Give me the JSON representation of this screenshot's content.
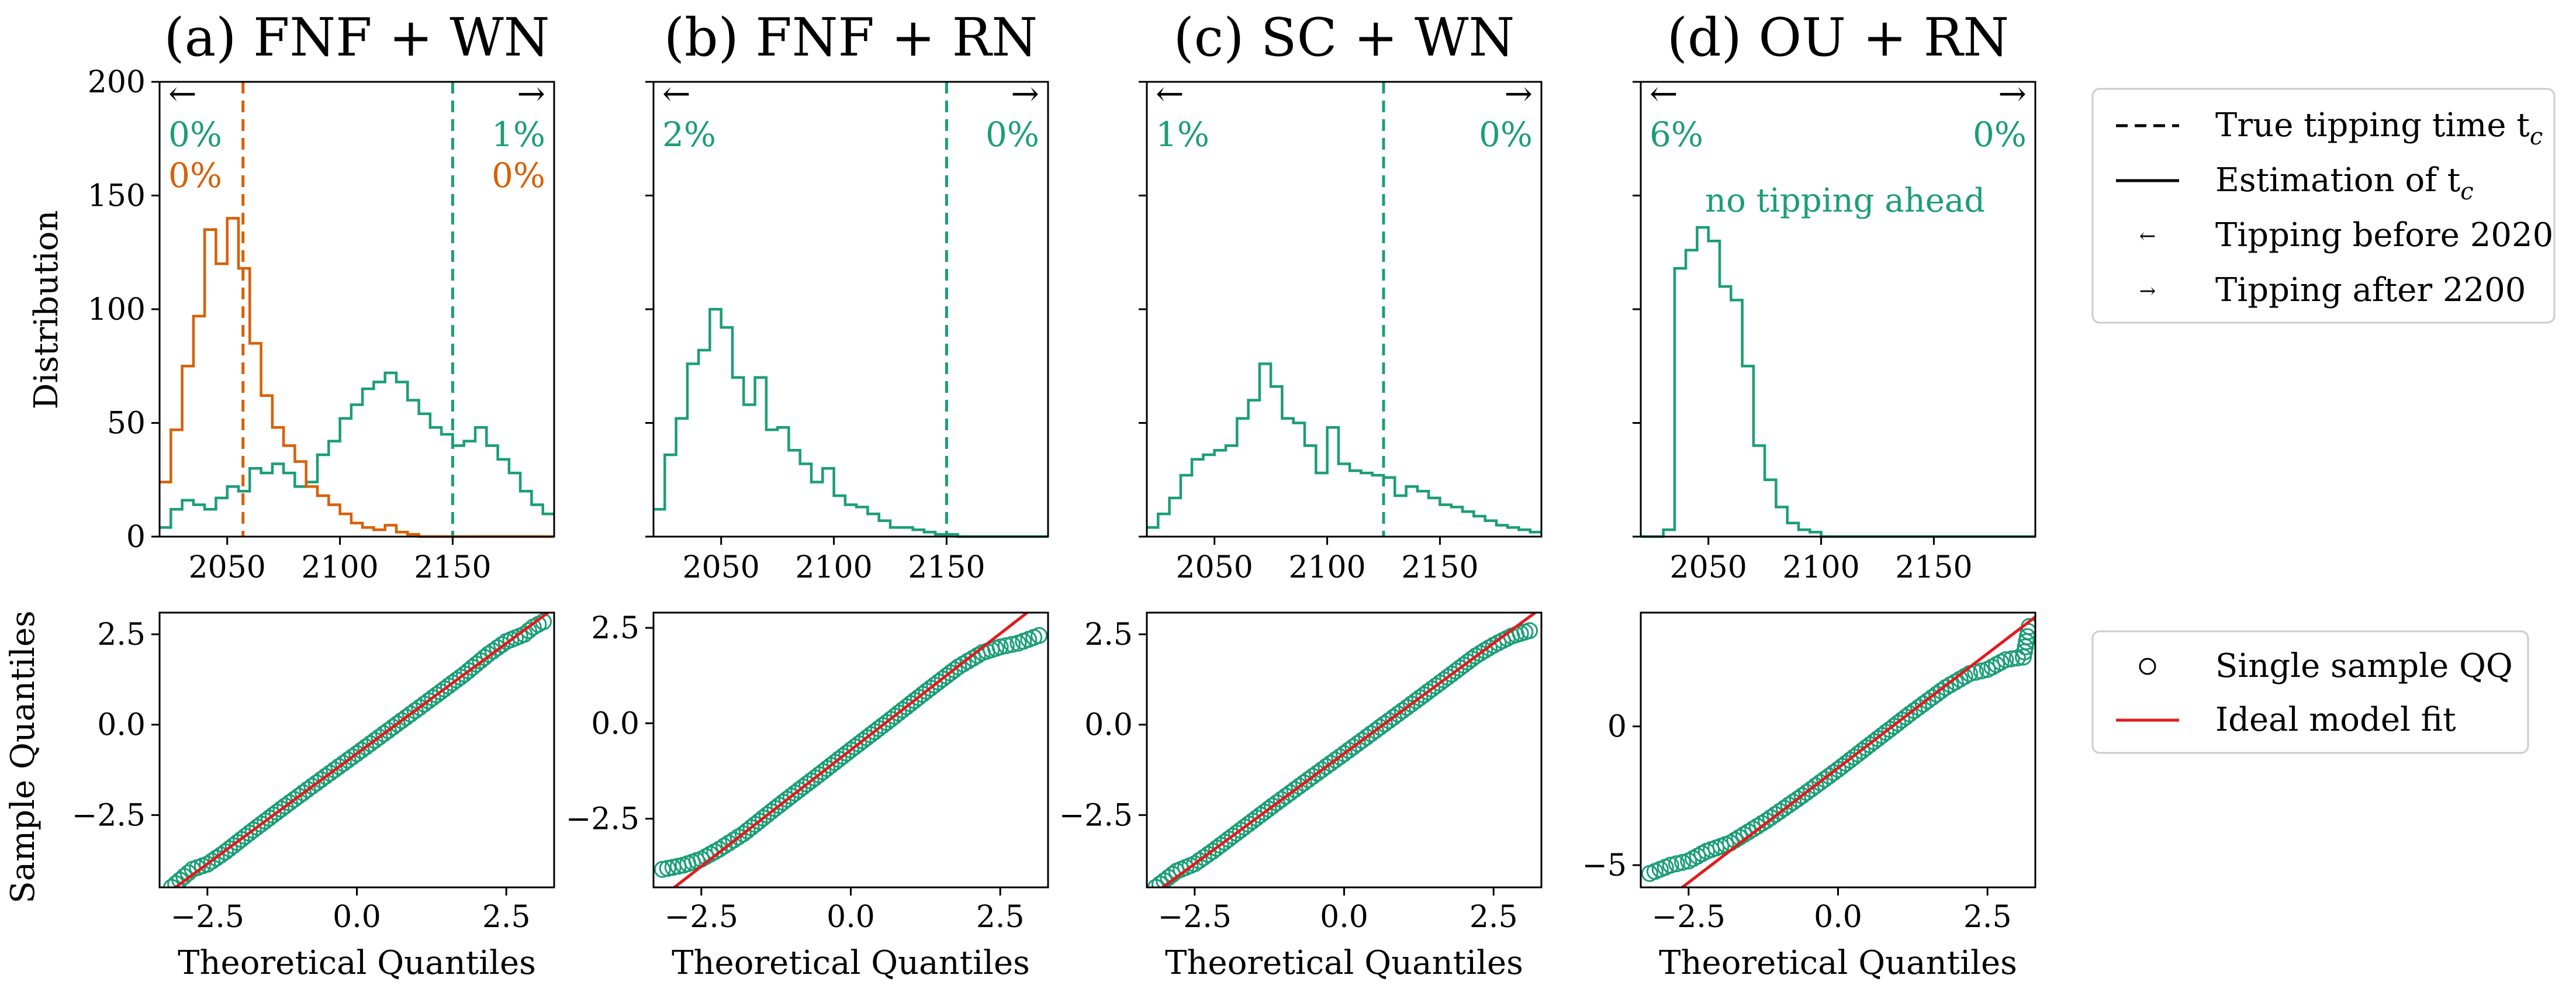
{
  "figure": {
    "colors": {
      "green": "#1b9e77",
      "orange": "#d95f02",
      "red": "#e31a1c",
      "black": "#000000"
    },
    "labels": {
      "top_ylabel": "Distribution",
      "bottom_ylabel": "Sample Quantiles",
      "bottom_xlabel": "Theoretical Quantiles"
    },
    "legend_top": {
      "items": [
        {
          "label": "True tipping time t",
          "subscript": "c",
          "style": "dashed"
        },
        {
          "label": "Estimation of t",
          "subscript": "c",
          "style": "solid"
        },
        {
          "label": "Tipping before 2020",
          "subscript": "",
          "style": "arrow-left"
        },
        {
          "label": "Tipping after 2200",
          "subscript": "",
          "style": "arrow-right"
        }
      ]
    },
    "legend_bottom": {
      "items": [
        {
          "label": "Single sample QQ",
          "style": "circle"
        },
        {
          "label": "Ideal model fit",
          "style": "line"
        }
      ]
    }
  },
  "chart_data": [
    {
      "type": "histogram",
      "title": "(a) FNF + WN",
      "xlim": [
        2020,
        2195
      ],
      "ylim": [
        0,
        200
      ],
      "xticks": [
        2050,
        2100,
        2150
      ],
      "yticks": [
        0,
        50,
        100,
        150,
        200
      ],
      "bin_start": 2020,
      "bin_width": 5,
      "arrows": {
        "left": "←",
        "right": "→"
      },
      "series": [
        {
          "color": "green",
          "true_tipping": 2150,
          "left_pct": "0%",
          "right_pct": "1%",
          "counts": [
            4,
            12,
            16,
            14,
            12,
            17,
            22,
            20,
            30,
            28,
            32,
            28,
            22,
            24,
            36,
            42,
            52,
            58,
            65,
            68,
            72,
            68,
            60,
            54,
            48,
            45,
            40,
            42,
            48,
            40,
            34,
            28,
            20,
            14,
            10
          ]
        },
        {
          "color": "orange",
          "true_tipping": 2057,
          "left_pct": "0%",
          "right_pct": "0%",
          "counts": [
            24,
            47,
            75,
            97,
            135,
            120,
            140,
            118,
            85,
            62,
            48,
            40,
            33,
            22,
            18,
            14,
            10,
            6,
            4,
            3,
            5,
            2,
            1,
            0,
            0,
            0,
            0,
            0,
            0,
            0,
            0,
            0,
            0,
            0,
            0
          ]
        }
      ]
    },
    {
      "type": "histogram",
      "title": "(b) FNF + RN",
      "xlim": [
        2020,
        2195
      ],
      "ylim": [
        0,
        200
      ],
      "xticks": [
        2050,
        2100,
        2150
      ],
      "yticks": [
        0,
        50,
        100,
        150,
        200
      ],
      "bin_start": 2020,
      "bin_width": 5,
      "arrows": {
        "left": "←",
        "right": "→"
      },
      "series": [
        {
          "color": "green",
          "true_tipping": 2150,
          "left_pct": "2%",
          "right_pct": "0%",
          "counts": [
            12,
            36,
            52,
            76,
            82,
            100,
            92,
            70,
            58,
            70,
            47,
            48,
            38,
            32,
            24,
            30,
            18,
            14,
            13,
            10,
            7,
            4,
            4,
            3,
            2,
            1,
            1,
            0,
            0,
            0,
            0,
            0,
            0,
            0,
            0
          ]
        }
      ]
    },
    {
      "type": "histogram",
      "title": "(c) SC + WN",
      "xlim": [
        2020,
        2195
      ],
      "ylim": [
        0,
        200
      ],
      "xticks": [
        2050,
        2100,
        2150
      ],
      "yticks": [
        0,
        50,
        100,
        150,
        200
      ],
      "bin_start": 2020,
      "bin_width": 5,
      "arrows": {
        "left": "←",
        "right": "→"
      },
      "series": [
        {
          "color": "green",
          "true_tipping": 2125,
          "left_pct": "1%",
          "right_pct": "0%",
          "counts": [
            4,
            10,
            17,
            27,
            34,
            36,
            38,
            40,
            52,
            60,
            76,
            66,
            52,
            50,
            40,
            28,
            48,
            32,
            29,
            28,
            27,
            26,
            18,
            22,
            20,
            17,
            14,
            13,
            11,
            9,
            7,
            5,
            4,
            3,
            2
          ]
        }
      ]
    },
    {
      "type": "histogram",
      "title": "(d) OU + RN",
      "xlim": [
        2020,
        2195
      ],
      "ylim": [
        0,
        200
      ],
      "xticks": [
        2050,
        2100,
        2150
      ],
      "yticks": [
        0,
        50,
        100,
        150,
        200
      ],
      "bin_start": 2020,
      "bin_width": 5,
      "arrows": {
        "left": "←",
        "right": "→"
      },
      "annotation": "no tipping ahead",
      "series": [
        {
          "color": "green",
          "true_tipping": null,
          "left_pct": "6%",
          "right_pct": "0%",
          "counts": [
            0,
            0,
            3,
            118,
            126,
            136,
            130,
            110,
            104,
            75,
            40,
            25,
            13,
            6,
            3,
            2,
            0,
            0,
            0,
            0,
            0,
            0,
            0,
            0,
            0,
            0,
            0,
            0,
            0,
            0,
            0,
            0,
            0,
            0,
            0
          ]
        }
      ]
    },
    {
      "type": "scatter",
      "subtype": "qq",
      "xlim": [
        -3.3,
        3.3
      ],
      "ylim": [
        -4.5,
        3.1
      ],
      "xticks": [
        -2.5,
        0.0,
        2.5
      ],
      "xtick_labels": [
        "−2.5",
        "0.0",
        "2.5"
      ],
      "yticks": [
        -2.5,
        0.0,
        2.5
      ],
      "ytick_labels": [
        "−2.5",
        "0.0",
        "2.5"
      ],
      "fit": {
        "slope": 1.22,
        "intercept": -0.8
      },
      "points": [
        [
          -3.1,
          -4.5
        ],
        [
          -2.75,
          -4.0
        ],
        [
          -2.5,
          -3.86
        ],
        [
          -2.2,
          -3.52
        ],
        [
          -1.8,
          -3.0
        ],
        [
          -1.2,
          -2.25
        ],
        [
          -0.6,
          -1.52
        ],
        [
          0.0,
          -0.8
        ],
        [
          0.6,
          -0.07
        ],
        [
          1.2,
          0.66
        ],
        [
          1.8,
          1.4
        ],
        [
          2.2,
          1.95
        ],
        [
          2.5,
          2.3
        ],
        [
          2.8,
          2.5
        ],
        [
          2.95,
          2.7
        ],
        [
          3.12,
          2.85
        ]
      ]
    },
    {
      "type": "scatter",
      "subtype": "qq",
      "xlim": [
        -3.3,
        3.3
      ],
      "ylim": [
        -4.3,
        2.9
      ],
      "xticks": [
        -2.5,
        0.0,
        2.5
      ],
      "xtick_labels": [
        "−2.5",
        "0.0",
        "2.5"
      ],
      "yticks": [
        -2.5,
        0.0,
        2.5
      ],
      "ytick_labels": [
        "−2.5",
        "0.0",
        "2.5"
      ],
      "fit": {
        "slope": 1.22,
        "intercept": -0.7
      },
      "points": [
        [
          -3.15,
          -3.83
        ],
        [
          -2.8,
          -3.72
        ],
        [
          -2.5,
          -3.56
        ],
        [
          -2.2,
          -3.3
        ],
        [
          -1.8,
          -2.9
        ],
        [
          -1.2,
          -2.15
        ],
        [
          -0.6,
          -1.43
        ],
        [
          0.0,
          -0.7
        ],
        [
          0.6,
          0.02
        ],
        [
          1.2,
          0.76
        ],
        [
          1.8,
          1.48
        ],
        [
          2.2,
          1.85
        ],
        [
          2.5,
          2.0
        ],
        [
          2.8,
          2.1
        ],
        [
          3.15,
          2.3
        ]
      ]
    },
    {
      "type": "scatter",
      "subtype": "qq",
      "xlim": [
        -3.3,
        3.3
      ],
      "ylim": [
        -4.5,
        3.1
      ],
      "xticks": [
        -2.5,
        0.0,
        2.5
      ],
      "xtick_labels": [
        "−2.5",
        "0.0",
        "2.5"
      ],
      "yticks": [
        -2.5,
        0.0,
        2.5
      ],
      "ytick_labels": [
        "−2.5",
        "0.0",
        "2.5"
      ],
      "fit": {
        "slope": 1.22,
        "intercept": -0.8
      },
      "points": [
        [
          -3.15,
          -4.5
        ],
        [
          -2.8,
          -4.05
        ],
        [
          -2.5,
          -3.85
        ],
        [
          -2.2,
          -3.5
        ],
        [
          -1.8,
          -3.0
        ],
        [
          -1.2,
          -2.25
        ],
        [
          -0.6,
          -1.52
        ],
        [
          0.0,
          -0.8
        ],
        [
          0.6,
          -0.07
        ],
        [
          1.2,
          0.66
        ],
        [
          1.8,
          1.4
        ],
        [
          2.2,
          1.9
        ],
        [
          2.5,
          2.2
        ],
        [
          2.8,
          2.45
        ],
        [
          3.1,
          2.6
        ]
      ]
    },
    {
      "type": "scatter",
      "subtype": "qq",
      "xlim": [
        -3.3,
        3.3
      ],
      "ylim": [
        -5.8,
        4.1
      ],
      "xticks": [
        -2.5,
        0.0,
        2.5
      ],
      "xtick_labels": [
        "−2.5",
        "0.0",
        "2.5"
      ],
      "yticks": [
        -5,
        0
      ],
      "ytick_labels": [
        "−5",
        "0"
      ],
      "fit": {
        "slope": 1.65,
        "intercept": -1.5
      },
      "points": [
        [
          -3.15,
          -5.3
        ],
        [
          -2.8,
          -5.0
        ],
        [
          -2.5,
          -4.85
        ],
        [
          -2.2,
          -4.5
        ],
        [
          -1.8,
          -4.2
        ],
        [
          -1.2,
          -3.4
        ],
        [
          -0.6,
          -2.5
        ],
        [
          0.0,
          -1.55
        ],
        [
          0.6,
          -0.55
        ],
        [
          1.2,
          0.45
        ],
        [
          1.8,
          1.4
        ],
        [
          2.2,
          1.9
        ],
        [
          2.5,
          2.05
        ],
        [
          2.8,
          2.4
        ],
        [
          3.1,
          2.5
        ],
        [
          3.2,
          3.6
        ]
      ]
    }
  ]
}
